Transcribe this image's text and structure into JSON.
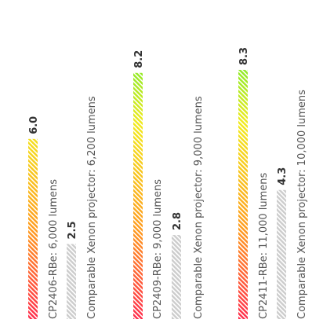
{
  "chart_data": {
    "type": "bar",
    "orientation": "vertical-rotated",
    "xlim": [
      0,
      10
    ],
    "grid": false,
    "categories": [
      "CP2406-RBe: 6,000 lumens",
      "Comparable Xenon projector: 6,200 lumens",
      "CP2409-RBe: 9,000 lumens",
      "Comparable Xenon projector: 9,000 lumens",
      "CP2411-RBe: 11,000 lumens",
      "Comparable Xenon projector: 10,000 lumens"
    ],
    "values": [
      6.0,
      2.5,
      8.2,
      2.8,
      8.3,
      4.3
    ],
    "value_labels": [
      "6.0",
      "2.5",
      "8.2",
      "2.8",
      "8.3",
      "4.3"
    ],
    "colors": {
      "gradient_start": "#ff2a4a",
      "gradient_mid1": "#ff9a1a",
      "gradient_mid2": "#f2ea1a",
      "gradient_end": "#2eea2e",
      "comparable": "#cccccc",
      "text": "#555555",
      "value_text": "#333333"
    }
  }
}
